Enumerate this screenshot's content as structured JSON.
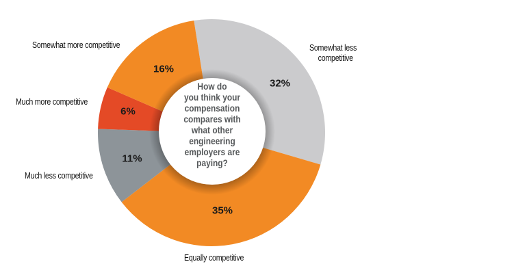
{
  "chart_data": {
    "type": "pie",
    "variant": "donut",
    "title": "How do you think your compensation compares with what other engineering employers are paying?",
    "center_text_lines": [
      "How do",
      "you think your",
      "compensation",
      "compares with",
      "what other",
      "engineering",
      "employers are",
      "paying?"
    ],
    "categories": [
      "Somewhat less competitive",
      "Equally competitive",
      "Much less competitive",
      "Much more competitive",
      "Somewhat more competitive"
    ],
    "values": [
      32,
      35,
      11,
      6,
      16
    ],
    "value_labels": [
      "32%",
      "35%",
      "11%",
      "6%",
      "16%"
    ],
    "colors": [
      "#CBCBCD",
      "#F28A24",
      "#8D9499",
      "#E44A26",
      "#F28A24"
    ],
    "start_angle_deg": -8.9,
    "direction": "clockwise",
    "legend": "none (direct labels)"
  },
  "labels": {
    "somewhat_less_line1": "Somewhat less",
    "somewhat_less_line2": "competitive",
    "equally": "Equally competitive",
    "much_less": "Much less competitive",
    "much_more": "Much more competitive",
    "somewhat_more": "Somewhat more competitive"
  },
  "percent": {
    "somewhat_less": "32%",
    "equally": "35%",
    "much_less": "11%",
    "much_more": "6%",
    "somewhat_more": "16%"
  }
}
